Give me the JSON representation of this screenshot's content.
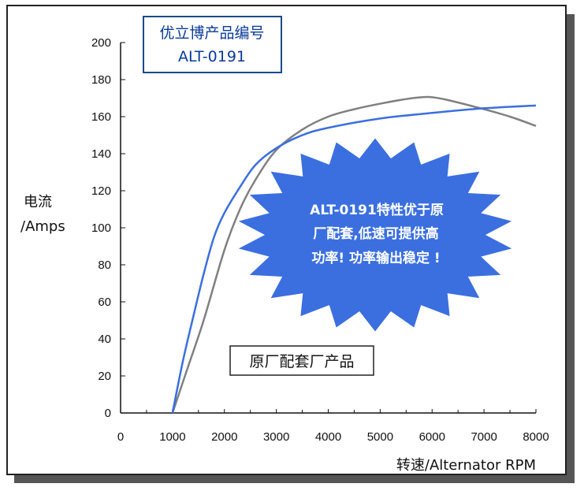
{
  "chart_data": {
    "type": "line",
    "xlabel": "转速/Alternator RPM",
    "ylabel_line1": "电流",
    "ylabel_line2": "/Amps",
    "xlim": [
      0,
      8000
    ],
    "ylim": [
      0,
      200
    ],
    "x_ticks": [
      0,
      1000,
      2000,
      3000,
      4000,
      5000,
      6000,
      7000,
      8000
    ],
    "y_ticks": [
      0,
      20,
      40,
      60,
      80,
      100,
      120,
      140,
      160,
      180,
      200
    ],
    "series": [
      {
        "name": "优立博产品编号 ALT-0191",
        "color": "#3b6fe0",
        "x": [
          1000,
          1200,
          1400,
          1600,
          1800,
          2000,
          2300,
          2600,
          3000,
          3500,
          4000,
          5000,
          6000,
          7000,
          8000
        ],
        "y": [
          0,
          28,
          52,
          75,
          95,
          108,
          122,
          134,
          143,
          150,
          154,
          159,
          162,
          164.5,
          166
        ]
      },
      {
        "name": "原厂配套厂产品",
        "color": "#808080",
        "x": [
          1000,
          1300,
          1600,
          2000,
          2300,
          2600,
          3000,
          3500,
          4000,
          4500,
          5000,
          5500,
          5800,
          6000,
          6300,
          7000,
          7500,
          8000
        ],
        "y": [
          0,
          25,
          50,
          88,
          110,
          126,
          142,
          153,
          160,
          164,
          167,
          169.5,
          170.5,
          170.5,
          169,
          164,
          160,
          155
        ]
      }
    ]
  },
  "labels": {
    "product_box_line1": "优立博产品编号",
    "product_box_line2": "ALT-0191",
    "oem_box": "原厂配套厂产品",
    "starburst_line1_bold": "ALT-0191",
    "starburst_line1_rest": "特性优于原",
    "starburst_line2": "厂配套,低速可提供高",
    "starburst_line3": "功率! 功率输出稳定 !"
  },
  "colors": {
    "starburst": "#3b6fe0",
    "product_box_border": "#1b4a8a",
    "product_box_text": "#0a3a9a"
  }
}
